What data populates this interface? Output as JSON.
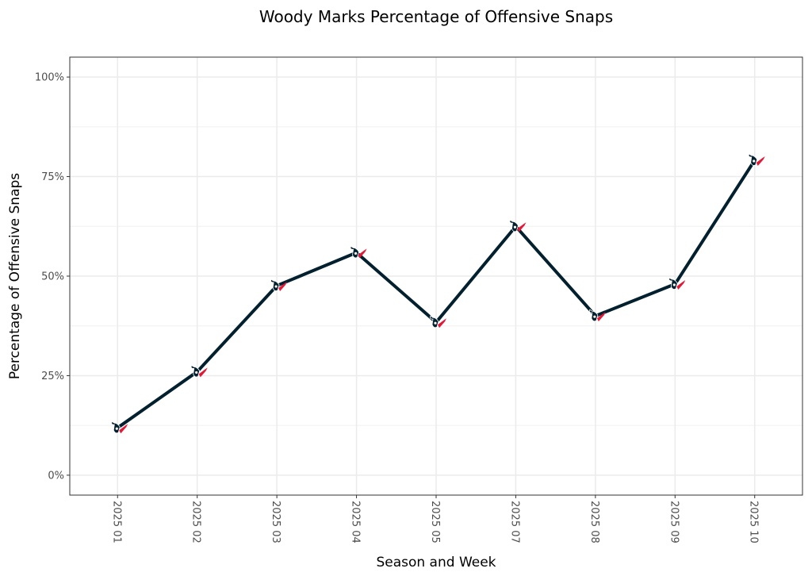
{
  "chart_data": {
    "type": "line",
    "title": "Woody Marks Percentage of Offensive Snaps",
    "xlabel": "Season and Week",
    "ylabel": "Percentage of Offensive Snaps",
    "categories": [
      "2025 01",
      "2025 02",
      "2025 03",
      "2025 04",
      "2025 05",
      "2025 07",
      "2025 08",
      "2025 09",
      "2025 10"
    ],
    "values": [
      11.9,
      26.0,
      47.6,
      55.9,
      38.4,
      62.5,
      40.0,
      48.0,
      79.1
    ],
    "ylim": [
      -5,
      105
    ],
    "yticks": [
      0,
      25,
      50,
      75,
      100
    ],
    "ytick_labels": [
      "0%",
      "25%",
      "50%",
      "75%",
      "100%"
    ],
    "grid": true,
    "line_color": "#03202f",
    "marker_accent": "#e31837",
    "marker_icon": "texans-logo-icon"
  }
}
